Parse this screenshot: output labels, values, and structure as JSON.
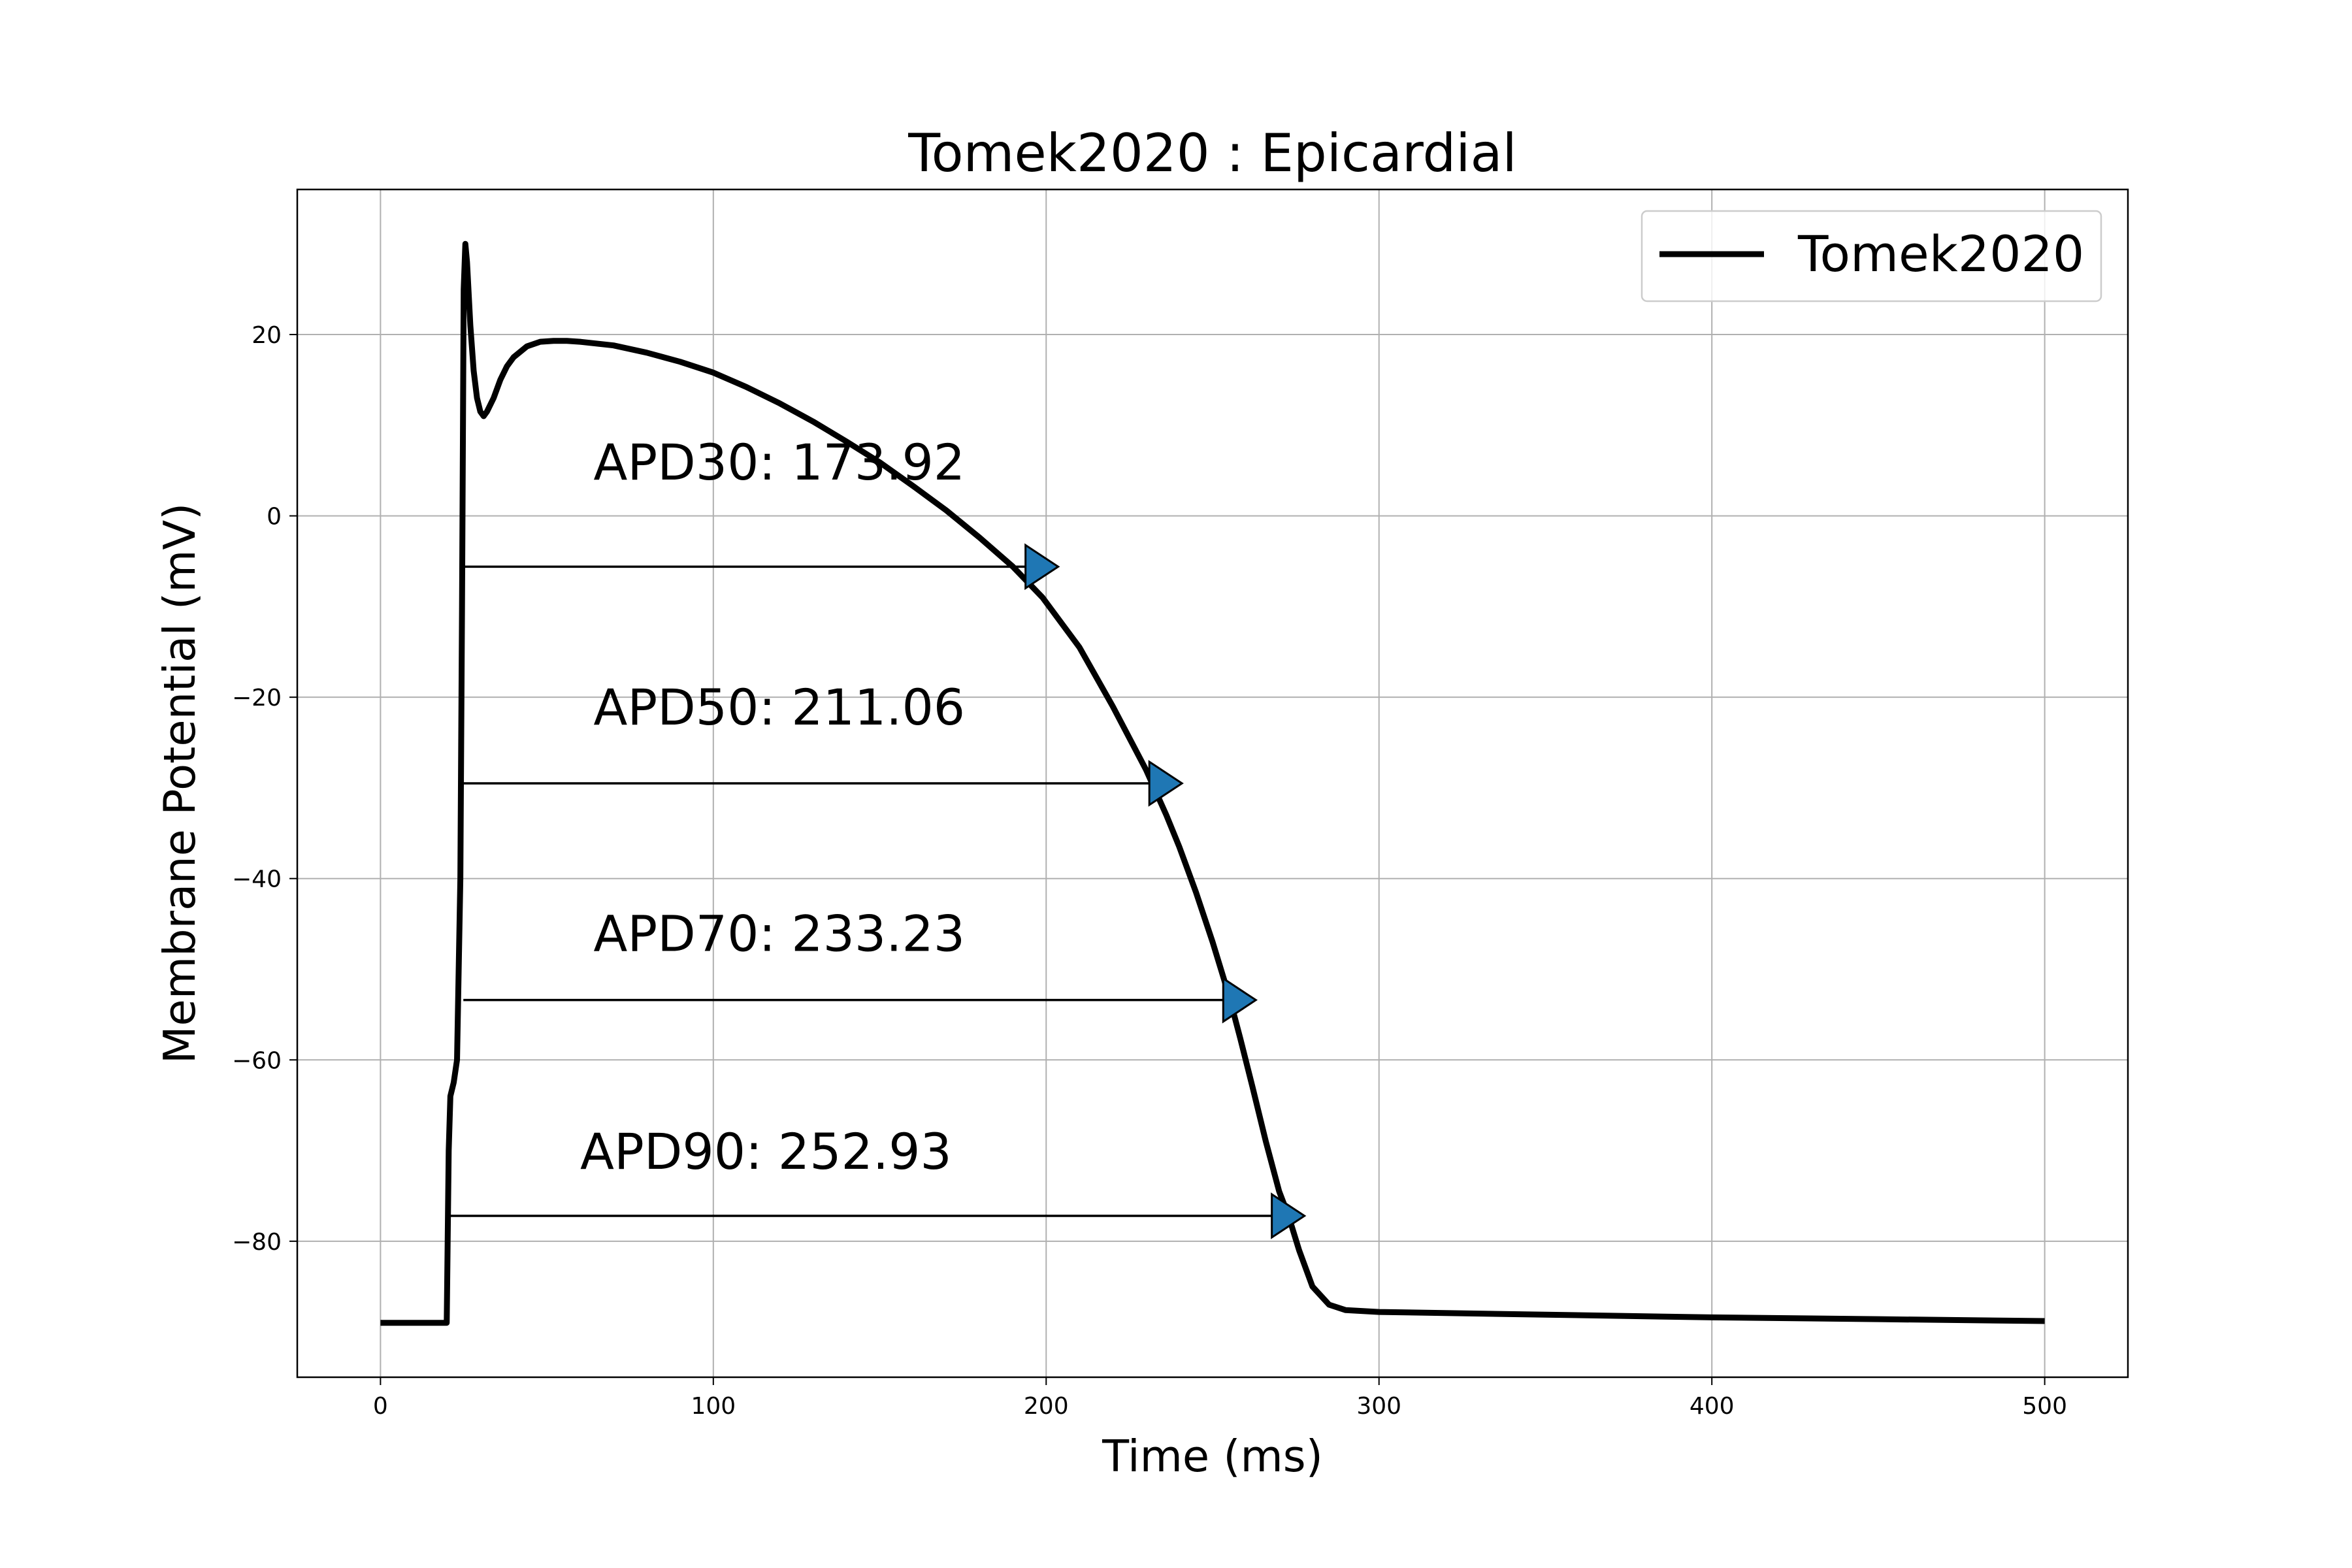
{
  "chart_data": {
    "type": "line",
    "title": "Tomek2020 : Epicardial",
    "xlabel": "Time (ms)",
    "ylabel": "Membrane Potential (mV)",
    "xlim": [
      -25,
      525
    ],
    "ylim": [
      -95,
      36
    ],
    "x_ticks": [
      0,
      100,
      200,
      300,
      400,
      500
    ],
    "y_ticks": [
      -80,
      -60,
      -40,
      -20,
      0,
      20
    ],
    "x_tick_labels": [
      "0",
      "100",
      "200",
      "300",
      "400",
      "500"
    ],
    "y_tick_labels": [
      "−80",
      "−60",
      "−40",
      "−20",
      "0",
      "20"
    ],
    "grid": true,
    "legend_position": "top-right",
    "series": [
      {
        "name": "Tomek2020",
        "color": "#000000",
        "x": [
          0,
          10,
          19.9,
          20,
          20.5,
          21,
          22,
          23,
          24,
          24.5,
          25,
          25.5,
          26,
          27,
          28,
          29,
          30,
          31,
          32,
          34,
          36,
          38,
          40,
          44,
          48,
          52,
          56,
          60,
          70,
          80,
          90,
          100,
          110,
          120,
          130,
          140,
          150,
          160,
          170,
          180,
          190,
          198.9,
          210,
          220,
          230,
          236.1,
          240,
          245,
          250,
          255,
          258.3,
          262,
          266,
          270,
          272.9,
          276,
          280,
          285,
          290,
          300,
          350,
          400,
          450,
          500
        ],
        "y": [
          -89,
          -89,
          -89,
          -86,
          -70,
          -64,
          -62.5,
          -60,
          -40,
          -10,
          25,
          30,
          28,
          21,
          16,
          13,
          11.5,
          11,
          11.5,
          13,
          15,
          16.5,
          17.5,
          18.7,
          19.2,
          19.3,
          19.3,
          19.2,
          18.8,
          18,
          17,
          15.8,
          14.2,
          12.4,
          10.4,
          8.2,
          5.9,
          3.3,
          0.6,
          -2.4,
          -5.6,
          -9,
          -14.5,
          -21,
          -28,
          -33,
          -36.5,
          -41.5,
          -47,
          -53,
          -57.6,
          -63,
          -69,
          -74.5,
          -77.3,
          -81,
          -85,
          -87,
          -87.6,
          -87.8,
          -88.1,
          -88.4,
          -88.6,
          -88.8
        ]
      }
    ],
    "annotations": [
      {
        "label": "APD30: 173.92",
        "start_x": 24.9,
        "end_x": 198.9,
        "y": -5.6,
        "label_x": 64,
        "label_y": 4
      },
      {
        "label": "APD50: 211.06",
        "start_x": 24.9,
        "end_x": 236.1,
        "y": -29.5,
        "label_x": 64,
        "label_y": -23
      },
      {
        "label": "APD70: 233.23",
        "start_x": 24.9,
        "end_x": 258.3,
        "y": -53.4,
        "label_x": 64,
        "label_y": -48
      },
      {
        "label": "APD90: 252.93",
        "start_x": 20,
        "end_x": 272.9,
        "y": -77.2,
        "label_x": 60,
        "label_y": -72
      }
    ],
    "marker_color": "#1f77b4"
  }
}
